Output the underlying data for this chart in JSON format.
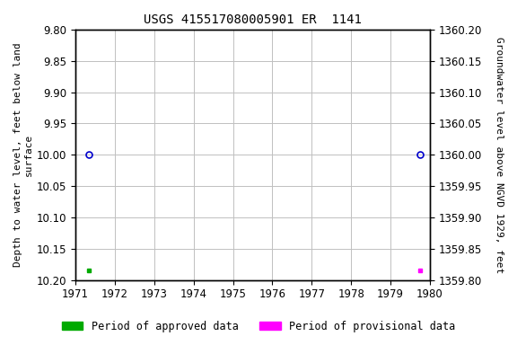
{
  "title": "USGS 415517080005901 ER  1141",
  "ylabel_left": "Depth to water level, feet below land\nsurface",
  "ylabel_right": "Groundwater level above NGVD 1929, feet",
  "xlim": [
    1971,
    1980
  ],
  "xticks": [
    1971,
    1972,
    1973,
    1974,
    1975,
    1976,
    1977,
    1978,
    1979,
    1980
  ],
  "ylim_left_top": 9.8,
  "ylim_left_bottom": 10.2,
  "ylim_right_top": 1360.2,
  "ylim_right_bottom": 1359.8,
  "yticks_left": [
    9.8,
    9.85,
    9.9,
    9.95,
    10.0,
    10.05,
    10.1,
    10.15,
    10.2
  ],
  "yticks_right": [
    1360.2,
    1360.15,
    1360.1,
    1360.05,
    1360.0,
    1359.95,
    1359.9,
    1359.85,
    1359.8
  ],
  "circle_points_x": [
    1971.35,
    1979.75
  ],
  "circle_points_y": [
    10.0,
    10.0
  ],
  "circle_color": "#0000cc",
  "approved_square_x": [
    1971.35
  ],
  "approved_square_y": [
    10.185
  ],
  "approved_color": "#00aa00",
  "provisional_square_x": [
    1979.75
  ],
  "provisional_square_y": [
    10.185
  ],
  "provisional_color": "#ff00ff",
  "background_color": "#ffffff",
  "grid_color": "#c0c0c0",
  "title_fontsize": 10,
  "axis_label_fontsize": 8,
  "tick_fontsize": 8.5,
  "legend_fontsize": 8.5
}
